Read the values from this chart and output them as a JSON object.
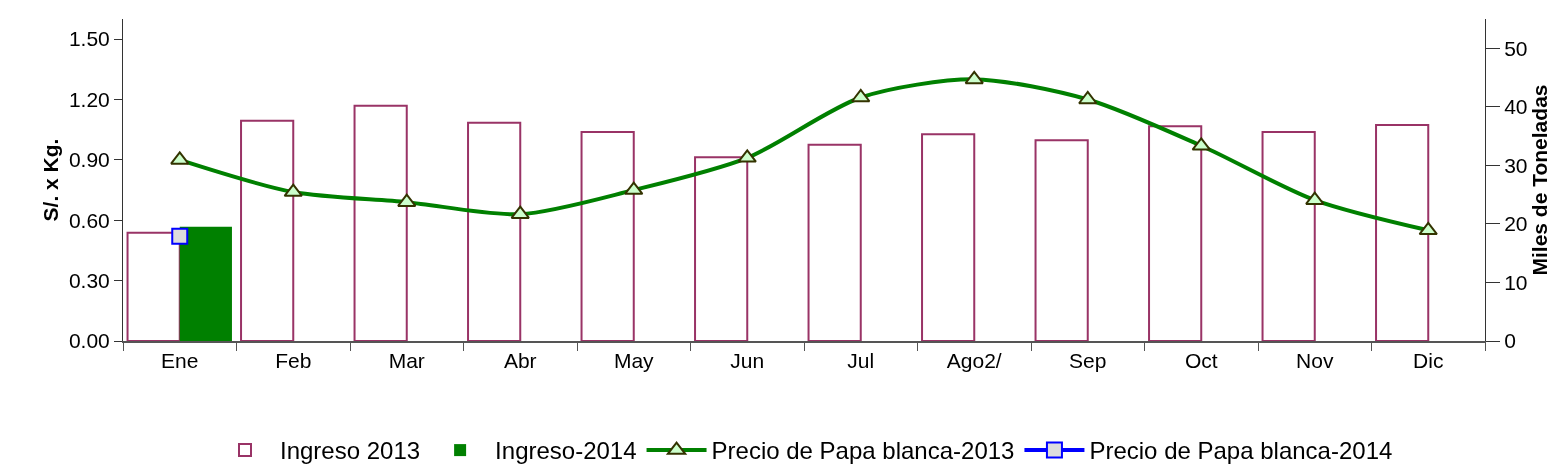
{
  "chart_data": {
    "type": "bar",
    "ylabel": "S/. x Kg.",
    "y2label": "Miles de Toneladas",
    "categories": [
      "Ene",
      "Feb",
      "Mar",
      "Abr",
      "May",
      "Jun",
      "Jul",
      "Ago2/",
      "Sep",
      "Oct",
      "Nov",
      "Dic"
    ],
    "series": [
      {
        "name": "Ingreso 2013",
        "axis": "y2",
        "color": "#993366",
        "values": [
          18.5,
          37.6,
          40.2,
          37.3,
          35.7,
          31.4,
          33.5,
          35.3,
          34.3,
          36.7,
          35.7,
          36.9
        ]
      },
      {
        "name": "Ingreso-2014",
        "axis": "y2",
        "color": "#008000",
        "values": [
          19.5,
          null,
          null,
          null,
          null,
          null,
          null,
          null,
          null,
          null,
          null,
          null
        ]
      },
      {
        "name": "Precio de Papa blanca-2013",
        "type": "line",
        "color": "#008000",
        "marker": "triangle",
        "values": [
          0.9,
          0.74,
          0.69,
          0.63,
          0.75,
          0.91,
          1.21,
          1.3,
          1.2,
          0.97,
          0.7,
          0.55
        ]
      },
      {
        "name": "Precio de Papa blanca-2014",
        "type": "line",
        "color": "#0000ff",
        "marker": "square",
        "values": [
          0.52,
          null,
          null,
          null,
          null,
          null,
          null,
          null,
          null,
          null,
          null,
          null
        ]
      }
    ],
    "ylim": [
      0,
      1.6
    ],
    "yticks": [
      {
        "value": 0,
        "label": "0.00"
      },
      {
        "value": 0.3,
        "label": "0.30"
      },
      {
        "value": 0.6,
        "label": "0.60"
      },
      {
        "value": 0.9,
        "label": "0.90"
      },
      {
        "value": 1.2,
        "label": "1.20"
      },
      {
        "value": 1.5,
        "label": "1.50"
      }
    ],
    "y2lim": [
      0,
      55
    ],
    "y2ticks": [
      0,
      10,
      20,
      30,
      40,
      50
    ],
    "grid": false,
    "legend": "bottom"
  }
}
